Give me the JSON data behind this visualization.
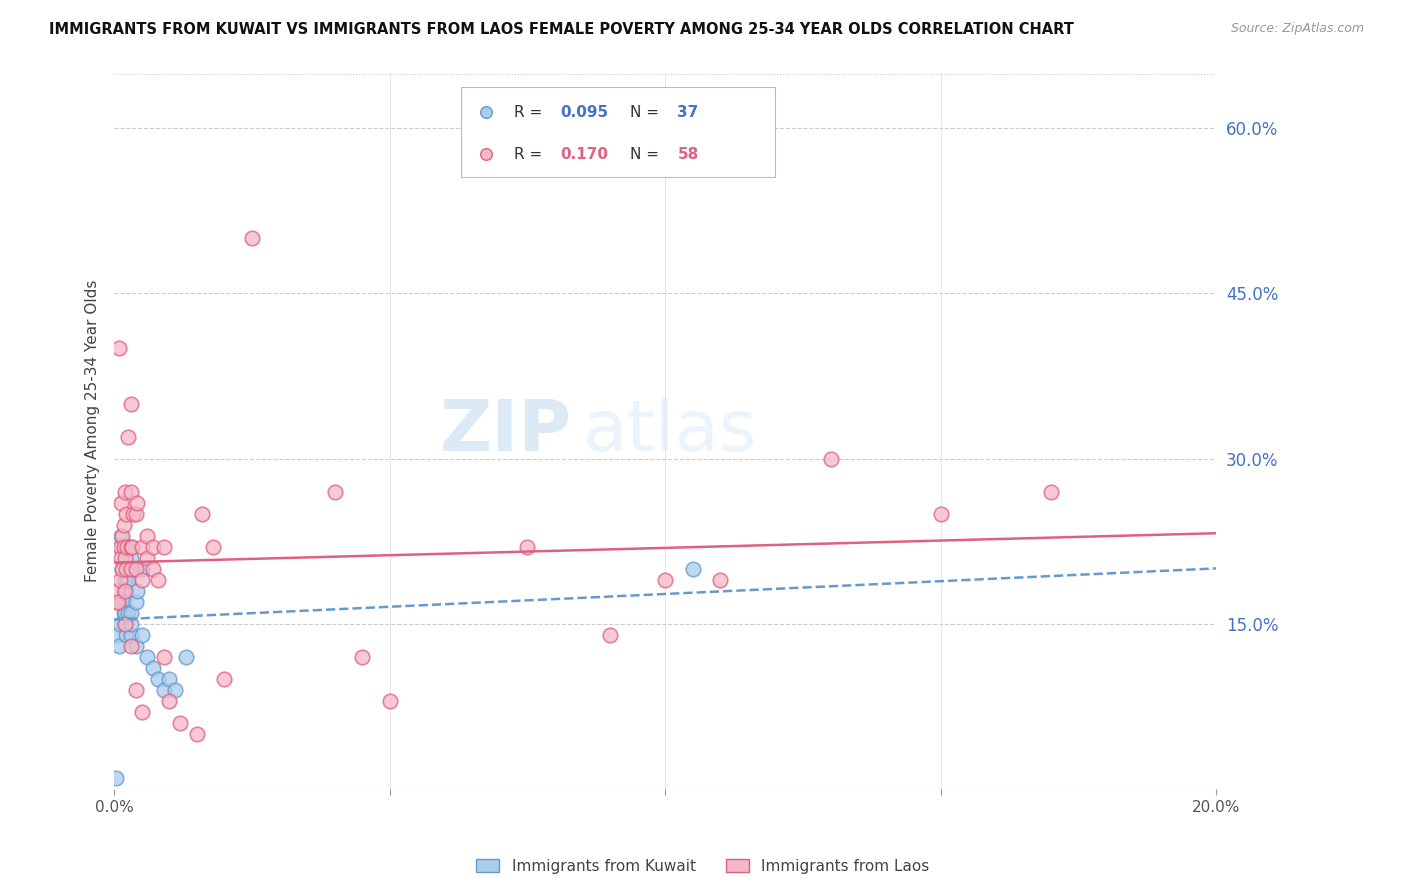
{
  "title": "IMMIGRANTS FROM KUWAIT VS IMMIGRANTS FROM LAOS FEMALE POVERTY AMONG 25-34 YEAR OLDS CORRELATION CHART",
  "source": "Source: ZipAtlas.com",
  "ylabel": "Female Poverty Among 25-34 Year Olds",
  "right_yticks": [
    "60.0%",
    "45.0%",
    "30.0%",
    "15.0%"
  ],
  "right_ytick_vals": [
    0.6,
    0.45,
    0.3,
    0.15
  ],
  "watermark_zip": "ZIP",
  "watermark_atlas": "atlas",
  "legend_kuwait_R": "0.095",
  "legend_kuwait_N": "37",
  "legend_laos_R": "0.170",
  "legend_laos_N": "58",
  "legend_kuwait_label": "Immigrants from Kuwait",
  "legend_laos_label": "Immigrants from Laos",
  "color_kuwait_fill": "#aaccee",
  "color_kuwait_edge": "#6699cc",
  "color_laos_fill": "#f5b8c8",
  "color_laos_edge": "#e06080",
  "color_kuwait_line": "#6699cc",
  "color_laos_line": "#e06080",
  "color_right_axis": "#4472c4",
  "color_legend_R_kuwait": "#4472c4",
  "color_legend_N_kuwait": "#4472c4",
  "color_legend_R_laos": "#e06080",
  "color_legend_N_laos": "#e06080",
  "xlim": [
    0.0,
    0.2
  ],
  "ylim": [
    0.0,
    0.65
  ],
  "kuwait_x": [
    0.0005,
    0.0008,
    0.001,
    0.001,
    0.0012,
    0.0013,
    0.0015,
    0.0015,
    0.0017,
    0.0018,
    0.0018,
    0.002,
    0.002,
    0.002,
    0.0022,
    0.0022,
    0.0025,
    0.0025,
    0.003,
    0.003,
    0.003,
    0.003,
    0.0035,
    0.004,
    0.004,
    0.0042,
    0.005,
    0.005,
    0.006,
    0.007,
    0.008,
    0.009,
    0.01,
    0.011,
    0.013,
    0.105,
    0.0004
  ],
  "kuwait_y": [
    0.14,
    0.13,
    0.15,
    0.17,
    0.22,
    0.23,
    0.2,
    0.17,
    0.18,
    0.16,
    0.17,
    0.15,
    0.16,
    0.19,
    0.14,
    0.22,
    0.19,
    0.16,
    0.14,
    0.15,
    0.16,
    0.21,
    0.2,
    0.13,
    0.17,
    0.18,
    0.2,
    0.14,
    0.12,
    0.11,
    0.1,
    0.09,
    0.1,
    0.09,
    0.12,
    0.2,
    0.01
  ],
  "laos_x": [
    0.0003,
    0.0005,
    0.0007,
    0.0008,
    0.001,
    0.001,
    0.0012,
    0.0013,
    0.0015,
    0.0015,
    0.0017,
    0.0018,
    0.002,
    0.002,
    0.002,
    0.0022,
    0.0022,
    0.0023,
    0.0025,
    0.003,
    0.003,
    0.003,
    0.003,
    0.0032,
    0.0035,
    0.004,
    0.004,
    0.0042,
    0.005,
    0.005,
    0.006,
    0.006,
    0.007,
    0.007,
    0.008,
    0.009,
    0.009,
    0.01,
    0.012,
    0.015,
    0.016,
    0.018,
    0.02,
    0.025,
    0.04,
    0.045,
    0.05,
    0.075,
    0.09,
    0.1,
    0.11,
    0.13,
    0.15,
    0.17,
    0.002,
    0.003,
    0.004,
    0.005
  ],
  "laos_y": [
    0.17,
    0.18,
    0.17,
    0.4,
    0.19,
    0.22,
    0.21,
    0.26,
    0.2,
    0.23,
    0.22,
    0.24,
    0.18,
    0.21,
    0.27,
    0.2,
    0.25,
    0.22,
    0.32,
    0.2,
    0.22,
    0.35,
    0.27,
    0.22,
    0.25,
    0.2,
    0.25,
    0.26,
    0.22,
    0.19,
    0.21,
    0.23,
    0.22,
    0.2,
    0.19,
    0.22,
    0.12,
    0.08,
    0.06,
    0.05,
    0.25,
    0.22,
    0.1,
    0.5,
    0.27,
    0.12,
    0.08,
    0.22,
    0.14,
    0.19,
    0.19,
    0.3,
    0.25,
    0.27,
    0.15,
    0.13,
    0.09,
    0.07
  ]
}
